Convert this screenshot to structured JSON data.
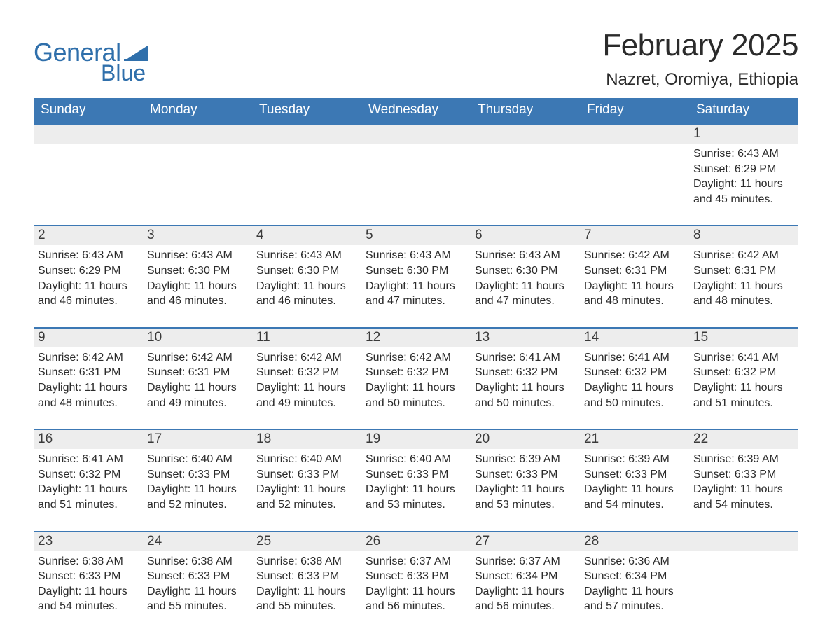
{
  "brand": {
    "general": "General",
    "blue": "Blue"
  },
  "title": "February 2025",
  "location": "Nazret, Oromiya, Ethiopia",
  "colors": {
    "header_bg": "#3c78b4",
    "header_text": "#ffffff",
    "daybar_bg": "#ededed",
    "daybar_border": "#3c78b4",
    "body_text": "#2b2b2b",
    "logo": "#2f6fab",
    "page_bg": "#ffffff"
  },
  "fonts": {
    "family": "Segoe UI / Helvetica Neue / Arial",
    "title_size_pt": 33,
    "location_size_pt": 18,
    "dow_size_pt": 14,
    "daynum_size_pt": 14,
    "body_size_pt": 12
  },
  "days_of_week": [
    "Sunday",
    "Monday",
    "Tuesday",
    "Wednesday",
    "Thursday",
    "Friday",
    "Saturday"
  ],
  "weeks": [
    [
      null,
      null,
      null,
      null,
      null,
      null,
      {
        "n": "1",
        "sunrise": "6:43 AM",
        "sunset": "6:29 PM",
        "daylight": "11 hours and 45 minutes."
      }
    ],
    [
      {
        "n": "2",
        "sunrise": "6:43 AM",
        "sunset": "6:29 PM",
        "daylight": "11 hours and 46 minutes."
      },
      {
        "n": "3",
        "sunrise": "6:43 AM",
        "sunset": "6:30 PM",
        "daylight": "11 hours and 46 minutes."
      },
      {
        "n": "4",
        "sunrise": "6:43 AM",
        "sunset": "6:30 PM",
        "daylight": "11 hours and 46 minutes."
      },
      {
        "n": "5",
        "sunrise": "6:43 AM",
        "sunset": "6:30 PM",
        "daylight": "11 hours and 47 minutes."
      },
      {
        "n": "6",
        "sunrise": "6:43 AM",
        "sunset": "6:30 PM",
        "daylight": "11 hours and 47 minutes."
      },
      {
        "n": "7",
        "sunrise": "6:42 AM",
        "sunset": "6:31 PM",
        "daylight": "11 hours and 48 minutes."
      },
      {
        "n": "8",
        "sunrise": "6:42 AM",
        "sunset": "6:31 PM",
        "daylight": "11 hours and 48 minutes."
      }
    ],
    [
      {
        "n": "9",
        "sunrise": "6:42 AM",
        "sunset": "6:31 PM",
        "daylight": "11 hours and 48 minutes."
      },
      {
        "n": "10",
        "sunrise": "6:42 AM",
        "sunset": "6:31 PM",
        "daylight": "11 hours and 49 minutes."
      },
      {
        "n": "11",
        "sunrise": "6:42 AM",
        "sunset": "6:32 PM",
        "daylight": "11 hours and 49 minutes."
      },
      {
        "n": "12",
        "sunrise": "6:42 AM",
        "sunset": "6:32 PM",
        "daylight": "11 hours and 50 minutes."
      },
      {
        "n": "13",
        "sunrise": "6:41 AM",
        "sunset": "6:32 PM",
        "daylight": "11 hours and 50 minutes."
      },
      {
        "n": "14",
        "sunrise": "6:41 AM",
        "sunset": "6:32 PM",
        "daylight": "11 hours and 50 minutes."
      },
      {
        "n": "15",
        "sunrise": "6:41 AM",
        "sunset": "6:32 PM",
        "daylight": "11 hours and 51 minutes."
      }
    ],
    [
      {
        "n": "16",
        "sunrise": "6:41 AM",
        "sunset": "6:32 PM",
        "daylight": "11 hours and 51 minutes."
      },
      {
        "n": "17",
        "sunrise": "6:40 AM",
        "sunset": "6:33 PM",
        "daylight": "11 hours and 52 minutes."
      },
      {
        "n": "18",
        "sunrise": "6:40 AM",
        "sunset": "6:33 PM",
        "daylight": "11 hours and 52 minutes."
      },
      {
        "n": "19",
        "sunrise": "6:40 AM",
        "sunset": "6:33 PM",
        "daylight": "11 hours and 53 minutes."
      },
      {
        "n": "20",
        "sunrise": "6:39 AM",
        "sunset": "6:33 PM",
        "daylight": "11 hours and 53 minutes."
      },
      {
        "n": "21",
        "sunrise": "6:39 AM",
        "sunset": "6:33 PM",
        "daylight": "11 hours and 54 minutes."
      },
      {
        "n": "22",
        "sunrise": "6:39 AM",
        "sunset": "6:33 PM",
        "daylight": "11 hours and 54 minutes."
      }
    ],
    [
      {
        "n": "23",
        "sunrise": "6:38 AM",
        "sunset": "6:33 PM",
        "daylight": "11 hours and 54 minutes."
      },
      {
        "n": "24",
        "sunrise": "6:38 AM",
        "sunset": "6:33 PM",
        "daylight": "11 hours and 55 minutes."
      },
      {
        "n": "25",
        "sunrise": "6:38 AM",
        "sunset": "6:33 PM",
        "daylight": "11 hours and 55 minutes."
      },
      {
        "n": "26",
        "sunrise": "6:37 AM",
        "sunset": "6:33 PM",
        "daylight": "11 hours and 56 minutes."
      },
      {
        "n": "27",
        "sunrise": "6:37 AM",
        "sunset": "6:34 PM",
        "daylight": "11 hours and 56 minutes."
      },
      {
        "n": "28",
        "sunrise": "6:36 AM",
        "sunset": "6:34 PM",
        "daylight": "11 hours and 57 minutes."
      },
      null
    ]
  ],
  "labels": {
    "sunrise": "Sunrise: ",
    "sunset": "Sunset: ",
    "daylight": "Daylight: "
  }
}
